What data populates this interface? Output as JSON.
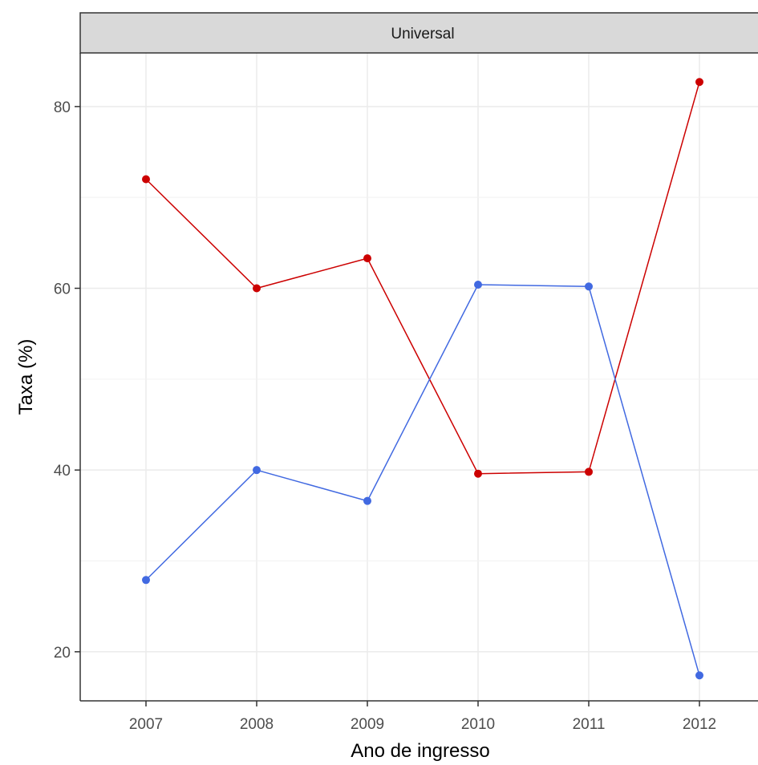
{
  "chart_data": {
    "type": "line",
    "facet_label": "Universal",
    "x": [
      "2007",
      "2008",
      "2009",
      "2010",
      "2011",
      "2012"
    ],
    "series": [
      {
        "color": "#cc0000",
        "values": [
          72.0,
          60.0,
          63.3,
          39.6,
          39.8,
          82.7
        ]
      },
      {
        "color": "#4169e1",
        "values": [
          27.9,
          40.0,
          36.6,
          60.4,
          60.2,
          17.4
        ]
      }
    ],
    "xlabel": "Ano de ingresso",
    "ylabel": "Taxa (%)",
    "yticks": [
      20,
      40,
      60,
      80
    ],
    "ylim": [
      14.6,
      85.9
    ],
    "grid": true,
    "legend": "none"
  }
}
